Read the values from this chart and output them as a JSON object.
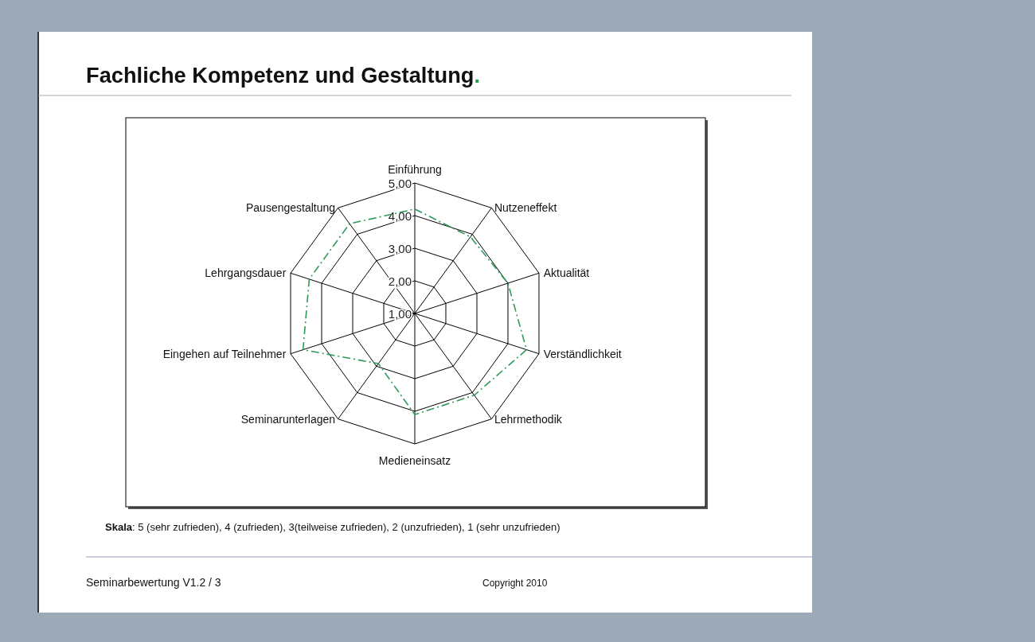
{
  "chart_data": {
    "type": "radar",
    "title": "Fachliche Kompetenz und Gestaltung.",
    "categories": [
      "Einführung",
      "Nutzeneffekt",
      "Aktualität",
      "Verständlichkeit",
      "Lehrmethodik",
      "Medieneinsatz",
      "Seminarunterlagen",
      "Eingehen auf Teilnehmer",
      "Lehrgangsdauer",
      "Pausengestaltung"
    ],
    "series": [
      {
        "color": "#2e9a5a",
        "values": [
          4.2,
          3.9,
          4.0,
          4.6,
          4.1,
          4.1,
          2.9,
          4.6,
          4.4,
          4.4
        ]
      }
    ],
    "ylim": [
      1,
      5
    ],
    "yticks": [
      {
        "value": 1,
        "label": "1,00"
      },
      {
        "value": 2,
        "label": "2,00"
      },
      {
        "value": 3,
        "label": "3,00"
      },
      {
        "value": 4,
        "label": "4,00"
      },
      {
        "value": 5,
        "label": "5,00"
      }
    ],
    "grid": true,
    "line_style": "dashed",
    "marker": "none",
    "annotations": [
      "Skala: 5 (sehr zufrieden), 4 (zufrieden), 3(teilweise zufrieden), 2 (unzufrieden), 1 (sehr unzufrieden)",
      "Seminarbewertung V1.2 / 3",
      "Copyright 2010"
    ]
  }
}
